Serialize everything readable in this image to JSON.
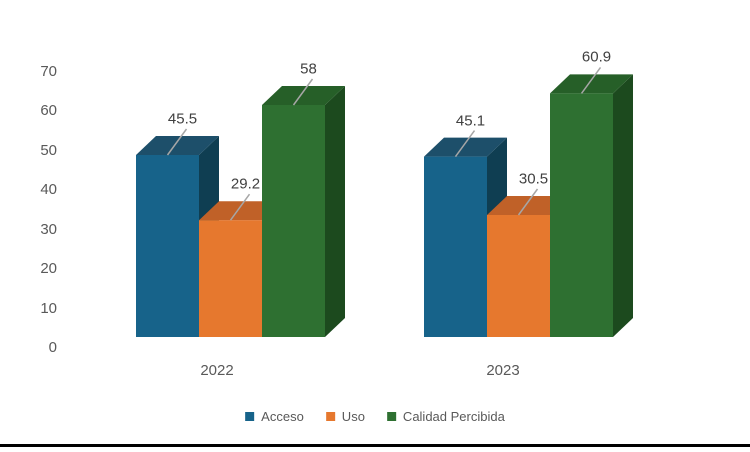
{
  "chart_data": {
    "type": "bar",
    "style_3d": true,
    "title": "",
    "xlabel": "",
    "ylabel": "",
    "categories": [
      "2022",
      "2023"
    ],
    "series": [
      {
        "name": "Acceso",
        "values": [
          45.5,
          45.1
        ],
        "color": "#17638A",
        "color_top": "#1D4F6A",
        "color_side": "#0F3E52"
      },
      {
        "name": "Uso",
        "values": [
          29.2,
          30.5
        ],
        "color": "#E6782E",
        "color_top": "#C06128",
        "color_side": "#A85420"
      },
      {
        "name": "Calidad Percibida",
        "values": [
          58,
          60.9
        ],
        "color": "#2E7031",
        "color_top": "#265F28",
        "color_side": "#1C4A1E"
      }
    ],
    "data_labels": [
      [
        "45.5",
        "29.2",
        "58"
      ],
      [
        "45.1",
        "30.5",
        "60.9"
      ]
    ],
    "y_ticks": [
      0,
      10,
      20,
      30,
      40,
      50,
      60,
      70
    ],
    "ylim": [
      0,
      70
    ],
    "gridlines": false,
    "legend_position": "bottom"
  },
  "colors": {
    "axis_text": "#595959",
    "data_label_text": "#404040",
    "leader_line": "#A6A6A6",
    "background": "#FFFFFF",
    "bottom_rule": "#000000"
  }
}
